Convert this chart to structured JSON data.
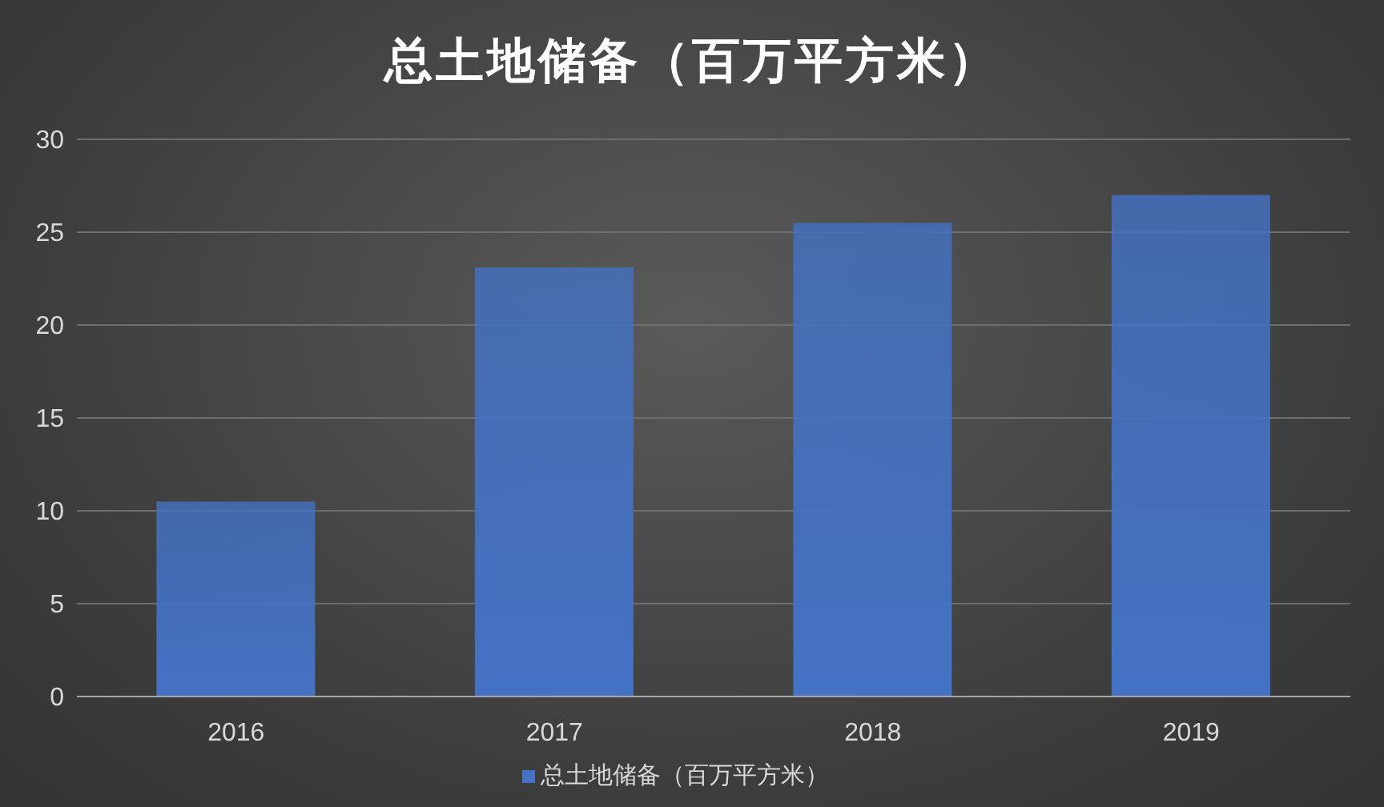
{
  "chart_data": {
    "type": "bar",
    "title": "总土地储备（百万平方米）",
    "categories": [
      "2016",
      "2017",
      "2018",
      "2019"
    ],
    "series": [
      {
        "name": "总土地储备（百万平方米）",
        "color": "#4472c4",
        "values": [
          10.5,
          23.1,
          25.5,
          27.0
        ]
      }
    ],
    "ylim": [
      0,
      30
    ],
    "yticks": [
      0,
      5,
      10,
      15,
      20,
      25,
      30
    ],
    "grid": "y",
    "legend": "bottom"
  }
}
